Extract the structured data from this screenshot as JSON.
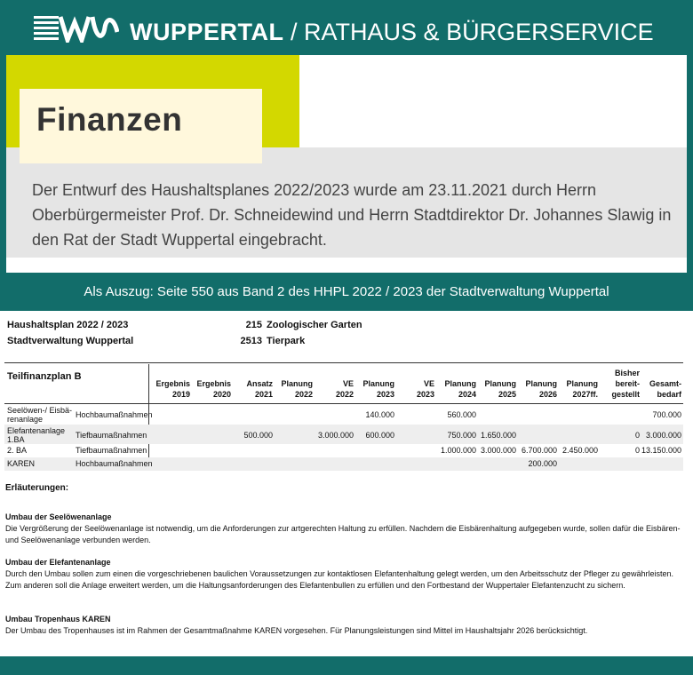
{
  "header": {
    "brand": "WUPPERTAL",
    "separator": "/",
    "subtitle": "RATHAUS & BÜRGERSERVICE"
  },
  "page": {
    "title": "Finanzen",
    "lead": "Der Entwurf des Haushaltsplanes 2022/2023 wurde am 23.11.2021 durch Herrn Oberbürgermeister Prof. Dr. Schneidewind und Herrn Stadtdirektor Dr. Johannes Slawig in den Rat der Stadt Wuppertal eingebracht."
  },
  "caption": "Als Auszug: Seite 550 aus Band 2 des HHPL 2022 / 2023 der Stadtverwaltung Wuppertal",
  "document": {
    "plan_title": "Haushaltsplan 2022 / 2023",
    "org": "Stadtverwaltung Wuppertal",
    "code1": "215",
    "code1_name": "Zoologischer Garten",
    "code2": "2513",
    "code2_name": "Tierpark",
    "table_title": "Teilfinanzplan B",
    "columns": [
      {
        "l1": "Ergebnis",
        "l2": "2019"
      },
      {
        "l1": "Ergebnis",
        "l2": "2020"
      },
      {
        "l1": "Ansatz",
        "l2": "2021"
      },
      {
        "l1": "Planung",
        "l2": "2022"
      },
      {
        "l1": "VE",
        "l2": "2022"
      },
      {
        "l1": "Planung",
        "l2": "2023"
      },
      {
        "l1": "VE",
        "l2": "2023"
      },
      {
        "l1": "Planung",
        "l2": "2024"
      },
      {
        "l1": "Planung",
        "l2": "2025"
      },
      {
        "l1": "Planung",
        "l2": "2026"
      },
      {
        "l1": "Planung",
        "l2": "2027ff."
      },
      {
        "l0": "Bisher",
        "l1": "bereit-",
        "l2": "gestellt"
      },
      {
        "l1": "Gesamt-",
        "l2": "bedarf"
      }
    ],
    "rows": [
      {
        "name1": "Seelöwen-/ Eisbä-",
        "name2": "renanlage",
        "type": "Hochbaumaßnahmen",
        "values": [
          "",
          "",
          "",
          "",
          "",
          "140.000",
          "",
          "560.000",
          "",
          "",
          "",
          "",
          "700.000"
        ]
      },
      {
        "name1": "Elefantenanlage",
        "name2": "1.BA",
        "type": "Tiefbaumaßnahmen",
        "values": [
          "",
          "",
          "500.000",
          "",
          "3.000.000",
          "600.000",
          "",
          "750.000",
          "1.650.000",
          "",
          "",
          "0",
          "3.000.000"
        ]
      },
      {
        "name1": "2. BA",
        "name2": "",
        "type": "Tiefbaumaßnahmen",
        "values": [
          "",
          "",
          "",
          "",
          "",
          "",
          "",
          "1.000.000",
          "3.000.000",
          "6.700.000",
          "2.450.000",
          "0",
          "13.150.000"
        ]
      },
      {
        "name1": "KAREN",
        "name2": "",
        "type": "Hochbaumaßnahmen",
        "values": [
          "",
          "",
          "",
          "",
          "",
          "",
          "",
          "",
          "",
          "200.000",
          "",
          "",
          ""
        ]
      }
    ],
    "notes_title": "Erläuterungen:",
    "sections": [
      {
        "heading": "Umbau der Seelöwenanlage",
        "text": "Die Vergrößerung der Seelöwenanlage ist notwendig, um die Anforderungen zur artgerechten Haltung zu erfüllen. Nachdem die Eisbärenhaltung aufgegeben wurde, sollen dafür die Eisbären- und Seelöwenanlage verbunden werden."
      },
      {
        "heading": "Umbau der Elefantenanlage",
        "text": "Durch den Umbau sollen zum einen die vorgeschriebenen baulichen Voraussetzungen zur kontaktlosen Elefantenhaltung gelegt werden, um den Arbeitsschutz der Pfleger zu gewährleisten. Zum anderen soll die Anlage erweitert werden, um die Haltungsanforderungen des Elefantenbullen zu erfüllen und den Fortbestand der Wuppertaler Elefantenzucht zu sichern."
      },
      {
        "heading": "Umbau Tropenhaus KAREN",
        "text": "Der Umbau des Tropenhauses ist im Rahmen der Gesamtmaßnahme KAREN vorgesehen. Für Planungsleistungen sind Mittel im Haushaltsjahr 2026 berücksichtigt."
      }
    ]
  }
}
